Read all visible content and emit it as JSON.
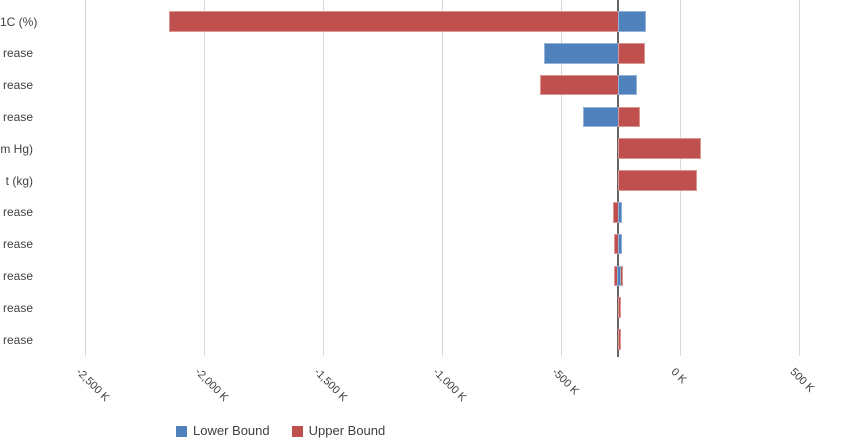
{
  "colors": {
    "lower": "#4F81BD",
    "lower_border": "#95B3D7",
    "upper": "#C0504D",
    "upper_border": "#D99694",
    "gridline": "#D9D9D9",
    "baseline": "#646464",
    "text": "#404040"
  },
  "chart_data": {
    "type": "bar",
    "orientation": "horizontal",
    "subtype": "tornado-sensitivity",
    "unit": "K",
    "baseline_k": -260,
    "axis": {
      "xlim_k": [
        -2700,
        700
      ],
      "grid": true,
      "tick_label_rotation_deg": 45,
      "ticks": [
        {
          "value": -2500,
          "label": "-2,500 K"
        },
        {
          "value": -2000,
          "label": "-2,000 K"
        },
        {
          "value": -1500,
          "label": "-1,500 K"
        },
        {
          "value": -1000,
          "label": "-1,000 K"
        },
        {
          "value": -500,
          "label": "-500 K"
        },
        {
          "value": 0,
          "label": "0 K"
        },
        {
          "value": 500,
          "label": "500 K"
        }
      ]
    },
    "series_legend": [
      {
        "name": "Lower Bound",
        "color": "#4F81BD"
      },
      {
        "name": "Upper Bound",
        "color": "#C0504D"
      }
    ],
    "legend_position": "bottom",
    "rows": [
      {
        "label": "1C (%)",
        "segments": [
          {
            "series": "upper",
            "from_k": -2145,
            "to_k": -260
          },
          {
            "series": "lower",
            "from_k": -260,
            "to_k": -147
          }
        ]
      },
      {
        "label": "rease",
        "segments": [
          {
            "series": "lower",
            "from_k": -570,
            "to_k": -260
          },
          {
            "series": "upper",
            "from_k": -260,
            "to_k": -151
          }
        ]
      },
      {
        "label": "rease",
        "segments": [
          {
            "series": "upper",
            "from_k": -588,
            "to_k": -260
          },
          {
            "series": "lower",
            "from_k": -260,
            "to_k": -183
          }
        ]
      },
      {
        "label": "rease",
        "segments": [
          {
            "series": "lower",
            "from_k": -406,
            "to_k": -260
          },
          {
            "series": "upper",
            "from_k": -260,
            "to_k": -171
          }
        ]
      },
      {
        "label": "m Hg)",
        "segments": [
          {
            "series": "upper",
            "from_k": -260,
            "to_k": 84
          }
        ]
      },
      {
        "label": "t (kg)",
        "segments": [
          {
            "series": "upper",
            "from_k": -260,
            "to_k": 66
          }
        ]
      },
      {
        "label": "rease",
        "segments": [
          {
            "series": "upper",
            "from_k": -281,
            "to_k": -260
          },
          {
            "series": "lower",
            "from_k": -260,
            "to_k": -246
          }
        ]
      },
      {
        "label": "rease",
        "segments": [
          {
            "series": "upper",
            "from_k": -276,
            "to_k": -260
          },
          {
            "series": "lower",
            "from_k": -260,
            "to_k": -246
          }
        ]
      },
      {
        "label": "rease",
        "segments": [
          {
            "series": "upper",
            "from_k": -276,
            "to_k": -244
          },
          {
            "series": "lower",
            "from_k": -265,
            "to_k": -252
          }
        ]
      },
      {
        "label": "rease",
        "segments": [
          {
            "series": "upper",
            "from_k": -262,
            "to_k": -257
          }
        ]
      },
      {
        "label": "rease",
        "segments": [
          {
            "series": "upper",
            "from_k": -262,
            "to_k": -257
          }
        ]
      }
    ]
  }
}
